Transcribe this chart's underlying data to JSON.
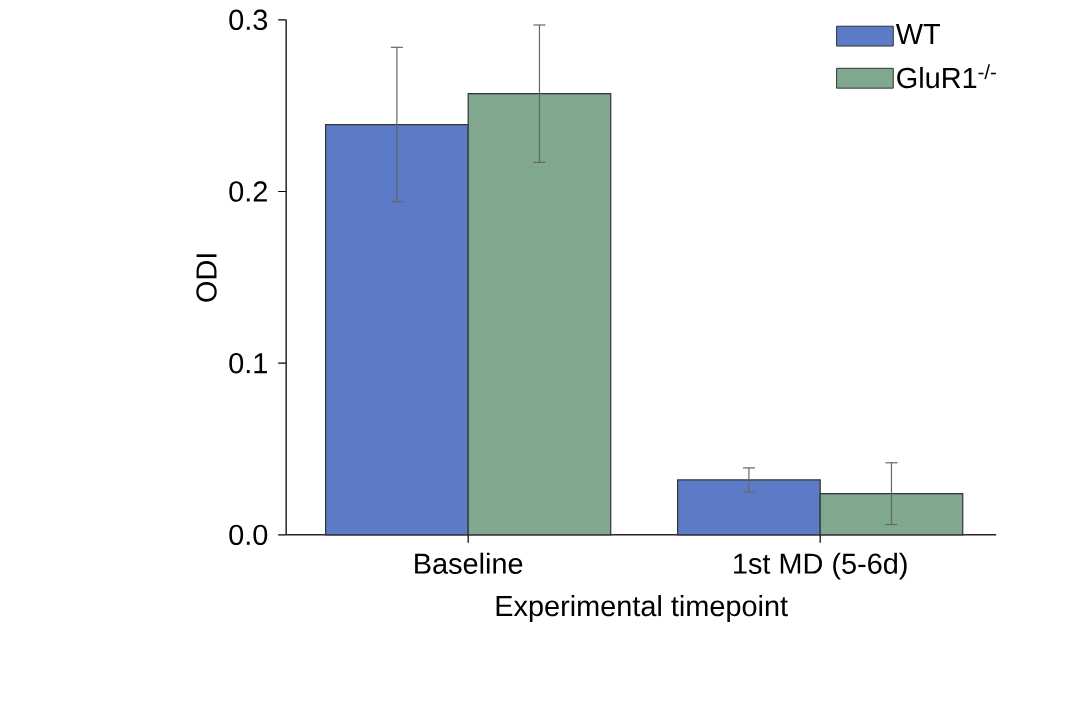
{
  "chart_data": {
    "type": "bar",
    "xlabel": "Experimental timepoint",
    "ylabel": "ODI",
    "categories": [
      "Baseline",
      "1st MD (5-6d)"
    ],
    "series": [
      {
        "name": "WT",
        "color": "#5b7bc6",
        "values": [
          0.239,
          0.032
        ],
        "errors": [
          0.045,
          0.007
        ]
      },
      {
        "name": "GluR1$^{-/-}$",
        "color": "#7fa88e",
        "values": [
          0.257,
          0.024
        ],
        "errors": [
          0.04,
          0.018
        ]
      }
    ],
    "ylim": [
      0,
      0.3
    ],
    "yticks": [
      {
        "value": 0,
        "label": "0.0"
      },
      {
        "value": 0.1,
        "label": "0.1"
      },
      {
        "value": 0.2,
        "label": "0.2"
      },
      {
        "value": 0.3,
        "label": "0.3"
      }
    ],
    "legend": "top right"
  }
}
